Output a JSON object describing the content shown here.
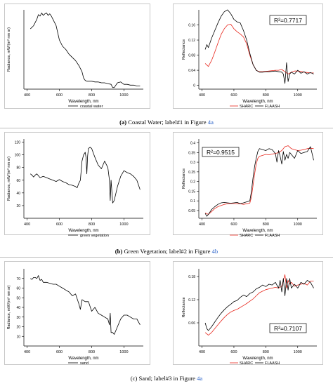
{
  "captions": [
    {
      "label": "(a)",
      "text": " Coastal Water; label#1 in Figure ",
      "fig": "4a"
    },
    {
      "label": "(b)",
      "text": " Green Vegetation; label#2 in Figure ",
      "fig": "4b"
    },
    {
      "label": "(c)",
      "text": " Sand; label#3 in Figure ",
      "fig": "4a"
    }
  ],
  "colors": {
    "sharc": "#e8281e",
    "flaash": "#000000",
    "radiance": "#000000"
  },
  "chart_data": [
    {
      "id": "a-radiance",
      "type": "line",
      "xlabel": "Wavelength, nm",
      "ylabel": "Radiance, mW/(m² nm sr)",
      "xlim": [
        380,
        1120
      ],
      "ylim": [
        0,
        1
      ],
      "xticks": [
        400,
        600,
        800,
        1000
      ],
      "yticks": [],
      "series": [
        {
          "name": "coastal water",
          "x": [
            420,
            430,
            440,
            450,
            460,
            470,
            480,
            490,
            500,
            510,
            520,
            530,
            540,
            550,
            560,
            580,
            600,
            620,
            640,
            660,
            680,
            700,
            720,
            740,
            750,
            760,
            770,
            780,
            800,
            820,
            840,
            860,
            880,
            900,
            920,
            930,
            940,
            960,
            980,
            1000,
            1020,
            1040,
            1060,
            1080,
            1100
          ],
          "y": [
            0.76,
            0.78,
            0.8,
            0.84,
            0.88,
            0.94,
            0.92,
            0.96,
            0.93,
            0.95,
            0.96,
            0.93,
            0.95,
            0.92,
            0.88,
            0.8,
            0.62,
            0.54,
            0.5,
            0.44,
            0.4,
            0.36,
            0.3,
            0.22,
            0.14,
            0.11,
            0.1,
            0.1,
            0.1,
            0.09,
            0.09,
            0.08,
            0.08,
            0.07,
            0.06,
            0.02,
            0.02,
            0.08,
            0.09,
            0.06,
            0.06,
            0.05,
            0.05,
            0.04,
            0.04
          ]
        }
      ]
    },
    {
      "id": "a-reflectance",
      "type": "line",
      "xlabel": "Wavelength, nm",
      "ylabel": "Reflectance",
      "xlim": [
        380,
        1120
      ],
      "ylim": [
        -0.01,
        0.2
      ],
      "xticks": [
        400,
        600,
        800,
        1000
      ],
      "yticks": [
        0,
        0.04,
        0.08,
        0.12,
        0.16
      ],
      "annotation": "R²=0.7717",
      "series": [
        {
          "name": "SHARC",
          "x": [
            420,
            440,
            460,
            480,
            500,
            520,
            540,
            560,
            580,
            600,
            620,
            640,
            660,
            680,
            700,
            720,
            740,
            760,
            780,
            800,
            820,
            840,
            860,
            880,
            900,
            920,
            940,
            960,
            980,
            1000,
            1020,
            1040,
            1060,
            1080,
            1100
          ],
          "y": [
            0.058,
            0.05,
            0.066,
            0.088,
            0.112,
            0.135,
            0.15,
            0.16,
            0.162,
            0.15,
            0.142,
            0.136,
            0.128,
            0.11,
            0.08,
            0.055,
            0.04,
            0.036,
            0.036,
            0.037,
            0.038,
            0.039,
            0.04,
            0.04,
            0.042,
            0.036,
            0.03,
            0.035,
            0.038,
            0.038,
            0.037,
            0.035,
            0.034,
            0.033,
            0.033
          ]
        },
        {
          "name": "FLAASH",
          "x": [
            420,
            430,
            440,
            460,
            480,
            500,
            520,
            540,
            560,
            580,
            600,
            620,
            640,
            660,
            680,
            700,
            720,
            740,
            760,
            780,
            800,
            820,
            840,
            860,
            880,
            900,
            910,
            920,
            930,
            940,
            950,
            960,
            980,
            1000,
            1020,
            1040,
            1060,
            1080,
            1100
          ],
          "y": [
            0.095,
            0.108,
            0.1,
            0.125,
            0.145,
            0.165,
            0.183,
            0.195,
            0.2,
            0.19,
            0.175,
            0.168,
            0.165,
            0.145,
            0.12,
            0.085,
            0.055,
            0.04,
            0.035,
            0.035,
            0.036,
            0.036,
            0.037,
            0.038,
            0.036,
            0.035,
            0.03,
            0.005,
            0.06,
            0.01,
            0.03,
            0.035,
            0.03,
            0.04,
            0.032,
            0.036,
            0.03,
            0.034,
            0.03
          ]
        }
      ]
    },
    {
      "id": "b-radiance",
      "type": "line",
      "xlabel": "Wavelength, nm",
      "ylabel": "Radiance, mW/(m² nm sr)",
      "xlim": [
        380,
        1120
      ],
      "ylim": [
        0,
        125
      ],
      "xticks": [
        400,
        600,
        800,
        1000
      ],
      "yticks": [
        20,
        40,
        60,
        80,
        100,
        120
      ],
      "series": [
        {
          "name": "green vegetation",
          "x": [
            420,
            430,
            440,
            450,
            460,
            470,
            480,
            500,
            520,
            540,
            560,
            580,
            600,
            620,
            640,
            660,
            680,
            700,
            710,
            720,
            730,
            740,
            750,
            760,
            765,
            770,
            775,
            780,
            790,
            800,
            820,
            840,
            860,
            880,
            900,
            910,
            915,
            920,
            930,
            940,
            960,
            980,
            1000,
            1020,
            1040,
            1060,
            1080,
            1100
          ],
          "y": [
            70,
            68,
            65,
            68,
            70,
            67,
            64,
            66,
            64,
            62,
            60,
            58,
            61,
            58,
            56,
            53,
            52,
            50,
            48,
            55,
            60,
            90,
            100,
            104,
            96,
            70,
            98,
            110,
            112,
            110,
            96,
            84,
            78,
            90,
            80,
            60,
            28,
            60,
            24,
            28,
            50,
            66,
            75,
            72,
            70,
            66,
            60,
            45
          ]
        }
      ]
    },
    {
      "id": "b-reflectance",
      "type": "line",
      "xlabel": "Wavelength, nm",
      "ylabel": "Reflectance",
      "xlim": [
        380,
        1120
      ],
      "ylim": [
        0.01,
        0.42
      ],
      "xticks": [
        400,
        600,
        800,
        1000
      ],
      "yticks": [
        0.05,
        0.1,
        0.15,
        0.2,
        0.25,
        0.3,
        0.35,
        0.4
      ],
      "annotation": "R²=0.9515",
      "series": [
        {
          "name": "SHARC",
          "x": [
            420,
            440,
            460,
            480,
            500,
            520,
            540,
            560,
            580,
            600,
            620,
            640,
            660,
            680,
            700,
            710,
            720,
            730,
            740,
            750,
            760,
            780,
            800,
            820,
            840,
            860,
            880,
            900,
            920,
            940,
            960,
            980,
            1000,
            1020,
            1040,
            1060,
            1080,
            1100
          ],
          "y": [
            0.038,
            0.03,
            0.045,
            0.06,
            0.07,
            0.076,
            0.082,
            0.085,
            0.086,
            0.086,
            0.085,
            0.085,
            0.082,
            0.085,
            0.088,
            0.12,
            0.18,
            0.24,
            0.29,
            0.32,
            0.33,
            0.335,
            0.34,
            0.338,
            0.342,
            0.345,
            0.35,
            0.36,
            0.38,
            0.385,
            0.37,
            0.365,
            0.36,
            0.362,
            0.365,
            0.37,
            0.372,
            0.37
          ]
        },
        {
          "name": "FLAASH",
          "x": [
            420,
            430,
            440,
            460,
            480,
            500,
            520,
            540,
            560,
            580,
            600,
            620,
            640,
            660,
            680,
            700,
            710,
            720,
            730,
            740,
            750,
            760,
            780,
            800,
            820,
            840,
            860,
            870,
            880,
            890,
            900,
            910,
            920,
            930,
            940,
            950,
            960,
            980,
            1000,
            1020,
            1040,
            1060,
            1080,
            1100
          ],
          "y": [
            0.035,
            0.02,
            0.03,
            0.055,
            0.07,
            0.082,
            0.09,
            0.092,
            0.09,
            0.088,
            0.09,
            0.092,
            0.085,
            0.09,
            0.095,
            0.1,
            0.15,
            0.22,
            0.28,
            0.32,
            0.355,
            0.37,
            0.365,
            0.36,
            0.37,
            0.365,
            0.345,
            0.3,
            0.36,
            0.33,
            0.29,
            0.355,
            0.31,
            0.34,
            0.32,
            0.35,
            0.34,
            0.32,
            0.36,
            0.345,
            0.35,
            0.355,
            0.38,
            0.31
          ]
        }
      ]
    },
    {
      "id": "c-radiance",
      "type": "line",
      "xlabel": "Wavelength, nm",
      "ylabel": "Radiance, mW/(m² nm sr)",
      "xlim": [
        380,
        1120
      ],
      "ylim": [
        0,
        80
      ],
      "xticks": [
        400,
        600,
        800,
        1000
      ],
      "yticks": [
        10,
        20,
        30,
        40,
        50,
        60,
        70
      ],
      "series": [
        {
          "name": "sand",
          "x": [
            420,
            430,
            440,
            450,
            460,
            470,
            480,
            490,
            500,
            520,
            540,
            560,
            580,
            600,
            620,
            640,
            660,
            680,
            700,
            720,
            730,
            740,
            760,
            780,
            800,
            820,
            840,
            860,
            880,
            900,
            910,
            915,
            920,
            930,
            940,
            960,
            980,
            1000,
            1020,
            1040,
            1060,
            1080,
            1100
          ],
          "y": [
            70,
            69,
            71,
            71,
            70,
            73,
            68,
            69,
            66,
            66,
            65,
            64,
            64,
            62,
            60,
            58,
            56,
            52,
            54,
            44,
            38,
            48,
            46,
            46,
            36,
            40,
            34,
            32,
            30,
            28,
            22,
            34,
            14,
            14,
            12,
            20,
            28,
            32,
            32,
            30,
            28,
            28,
            22
          ]
        }
      ]
    },
    {
      "id": "c-reflectance",
      "type": "line",
      "xlabel": "Wavelength, nm",
      "ylabel": "Reflectance",
      "xlim": [
        380,
        1120
      ],
      "ylim": [
        0,
        0.2
      ],
      "xticks": [
        400,
        600,
        800,
        1000
      ],
      "yticks": [
        0.06,
        0.12,
        0.18
      ],
      "annotation": "R²=0.7107",
      "series": [
        {
          "name": "SHARC",
          "x": [
            420,
            440,
            460,
            480,
            500,
            520,
            540,
            560,
            580,
            600,
            620,
            640,
            660,
            680,
            700,
            720,
            740,
            760,
            780,
            800,
            820,
            840,
            860,
            880,
            900,
            910,
            920,
            930,
            940,
            950,
            960,
            980,
            1000,
            1020,
            1040,
            1060,
            1080,
            1100
          ],
          "y": [
            0.035,
            0.028,
            0.035,
            0.045,
            0.055,
            0.065,
            0.074,
            0.082,
            0.088,
            0.092,
            0.095,
            0.1,
            0.105,
            0.11,
            0.116,
            0.122,
            0.13,
            0.138,
            0.142,
            0.146,
            0.148,
            0.15,
            0.152,
            0.15,
            0.155,
            0.17,
            0.185,
            0.15,
            0.17,
            0.16,
            0.165,
            0.155,
            0.158,
            0.16,
            0.162,
            0.158,
            0.168,
            0.168
          ]
        },
        {
          "name": "FLAASH",
          "x": [
            420,
            430,
            440,
            460,
            480,
            500,
            520,
            540,
            560,
            580,
            600,
            620,
            640,
            660,
            680,
            700,
            720,
            740,
            760,
            780,
            800,
            820,
            840,
            860,
            880,
            890,
            900,
            910,
            920,
            930,
            940,
            950,
            960,
            980,
            1000,
            1020,
            1040,
            1060,
            1080,
            1100
          ],
          "y": [
            0.06,
            0.045,
            0.04,
            0.05,
            0.062,
            0.074,
            0.085,
            0.094,
            0.102,
            0.108,
            0.115,
            0.118,
            0.126,
            0.132,
            0.128,
            0.136,
            0.14,
            0.148,
            0.152,
            0.158,
            0.154,
            0.16,
            0.158,
            0.165,
            0.15,
            0.17,
            0.14,
            0.175,
            0.13,
            0.175,
            0.145,
            0.175,
            0.15,
            0.16,
            0.15,
            0.165,
            0.16,
            0.17,
            0.165,
            0.15
          ]
        }
      ]
    }
  ]
}
